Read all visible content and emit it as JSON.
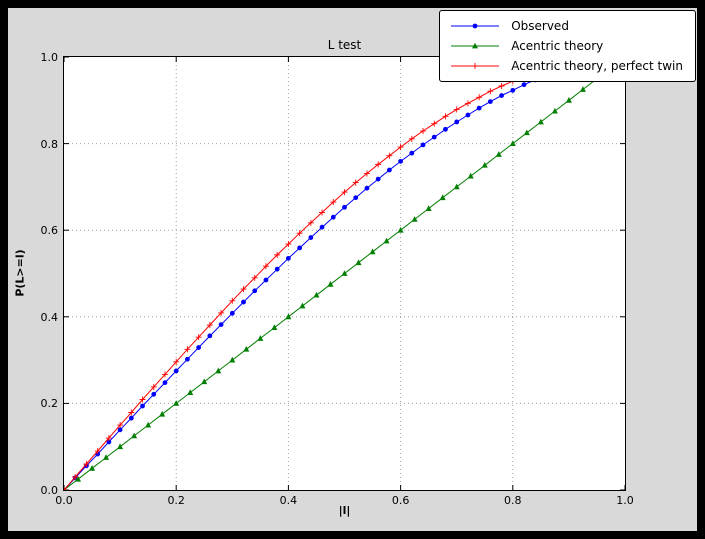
{
  "figure": {
    "title": "L test",
    "xlabel": "|l|",
    "ylabel": "P(L>=l)"
  },
  "axes": {
    "x_ticks": [
      "0.0",
      "0.2",
      "0.4",
      "0.6",
      "0.8",
      "1.0"
    ],
    "y_ticks": [
      "0.0",
      "0.2",
      "0.4",
      "0.6",
      "0.8",
      "1.0"
    ],
    "xlim": [
      0,
      1
    ],
    "ylim": [
      0,
      1
    ]
  },
  "colors": {
    "figure_bg": "#d9d9d9",
    "axes_bg": "#ffffff",
    "grid": "#a0a0a0",
    "observed": "#0000ff",
    "acentric": "#007f00",
    "perfect_twin": "#ff0000"
  },
  "chart_data": {
    "type": "line",
    "title": "L test",
    "xlabel": "|l|",
    "ylabel": "P(L>=l)",
    "xlim": [
      0,
      1
    ],
    "ylim": [
      0,
      1
    ],
    "grid": true,
    "grid_style": "dotted",
    "legend_position": "upper right",
    "series": [
      {
        "name": "Observed",
        "color": "#0000ff",
        "marker": "circle",
        "x": [
          0,
          0.02,
          0.04,
          0.06,
          0.08,
          0.1,
          0.12,
          0.14,
          0.16,
          0.18,
          0.2,
          0.22,
          0.24,
          0.26,
          0.28,
          0.3,
          0.32,
          0.34,
          0.36,
          0.38,
          0.4,
          0.42,
          0.44,
          0.46,
          0.48,
          0.5,
          0.52,
          0.54,
          0.56,
          0.58,
          0.6,
          0.62,
          0.64,
          0.66,
          0.68,
          0.7,
          0.72,
          0.74,
          0.76,
          0.78,
          0.8,
          0.82,
          0.84,
          0.86
        ],
        "y": [
          0,
          0.028,
          0.056,
          0.083,
          0.111,
          0.139,
          0.166,
          0.194,
          0.221,
          0.248,
          0.275,
          0.302,
          0.329,
          0.356,
          0.382,
          0.408,
          0.434,
          0.46,
          0.485,
          0.51,
          0.535,
          0.559,
          0.583,
          0.607,
          0.63,
          0.653,
          0.675,
          0.697,
          0.718,
          0.739,
          0.759,
          0.778,
          0.797,
          0.815,
          0.833,
          0.85,
          0.866,
          0.882,
          0.897,
          0.911,
          0.923,
          0.936,
          0.947,
          0.957
        ]
      },
      {
        "name": "Acentric theory",
        "color": "#007f00",
        "marker": "triangle",
        "x": [
          0,
          0.025,
          0.05,
          0.075,
          0.1,
          0.125,
          0.15,
          0.175,
          0.2,
          0.225,
          0.25,
          0.275,
          0.3,
          0.325,
          0.35,
          0.375,
          0.4,
          0.425,
          0.45,
          0.475,
          0.5,
          0.525,
          0.55,
          0.575,
          0.6,
          0.625,
          0.65,
          0.675,
          0.7,
          0.725,
          0.75,
          0.775,
          0.8,
          0.825,
          0.85,
          0.875,
          0.9,
          0.925,
          0.95,
          0.975
        ],
        "y": [
          0,
          0.025,
          0.05,
          0.075,
          0.1,
          0.125,
          0.15,
          0.175,
          0.2,
          0.225,
          0.25,
          0.275,
          0.3,
          0.325,
          0.35,
          0.375,
          0.4,
          0.425,
          0.45,
          0.475,
          0.5,
          0.525,
          0.55,
          0.575,
          0.6,
          0.625,
          0.65,
          0.675,
          0.7,
          0.725,
          0.75,
          0.775,
          0.8,
          0.825,
          0.85,
          0.875,
          0.9,
          0.925,
          0.95,
          0.975
        ]
      },
      {
        "name": "Acentric theory, perfect twin",
        "color": "#ff0000",
        "marker": "plus",
        "x": [
          0,
          0.02,
          0.04,
          0.06,
          0.08,
          0.1,
          0.12,
          0.14,
          0.16,
          0.18,
          0.2,
          0.22,
          0.24,
          0.26,
          0.28,
          0.3,
          0.32,
          0.34,
          0.36,
          0.38,
          0.4,
          0.42,
          0.44,
          0.46,
          0.48,
          0.5,
          0.52,
          0.54,
          0.56,
          0.58,
          0.6,
          0.62,
          0.64,
          0.66,
          0.68,
          0.7,
          0.72,
          0.74,
          0.76,
          0.78,
          0.8,
          0.82,
          0.84,
          0.86
        ],
        "y": [
          0,
          0.03,
          0.06,
          0.09,
          0.12,
          0.15,
          0.179,
          0.209,
          0.238,
          0.267,
          0.296,
          0.325,
          0.353,
          0.381,
          0.409,
          0.437,
          0.464,
          0.49,
          0.517,
          0.543,
          0.568,
          0.593,
          0.617,
          0.641,
          0.665,
          0.688,
          0.71,
          0.731,
          0.752,
          0.772,
          0.792,
          0.811,
          0.829,
          0.846,
          0.863,
          0.879,
          0.893,
          0.907,
          0.921,
          0.933,
          0.944,
          0.954,
          0.964,
          0.972
        ]
      }
    ]
  }
}
